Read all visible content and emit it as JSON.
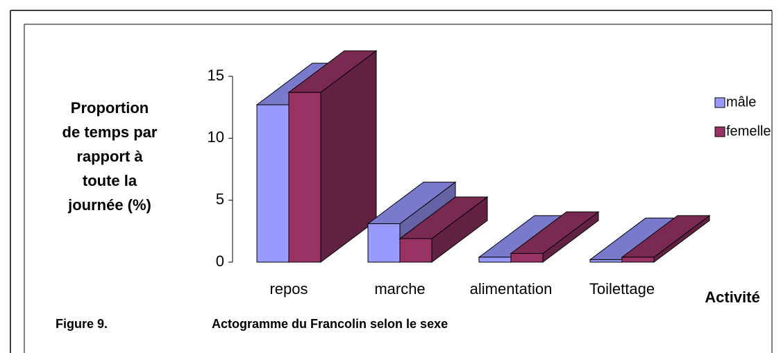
{
  "chart_data": {
    "type": "bar3d",
    "y_label": [
      "Proportion",
      "de temps par",
      "rapport à",
      "toute la",
      "journée (%)"
    ],
    "x_label": "Activité",
    "categories": [
      "repos",
      "marche",
      "alimentation",
      "Toilettage"
    ],
    "series": [
      {
        "name": "mâle",
        "color": "#9999ff",
        "values": [
          12.7,
          3.1,
          0.4,
          0.2
        ]
      },
      {
        "name": "femelle",
        "color": "#993366",
        "values": [
          13.7,
          1.9,
          0.7,
          0.4
        ]
      }
    ],
    "ylim": [
      0,
      15
    ],
    "yticks": [
      0,
      5,
      10,
      15
    ],
    "legend": "right",
    "caption_label": "Figure 9.",
    "caption": "Actogramme du Francolin selon le sexe"
  }
}
